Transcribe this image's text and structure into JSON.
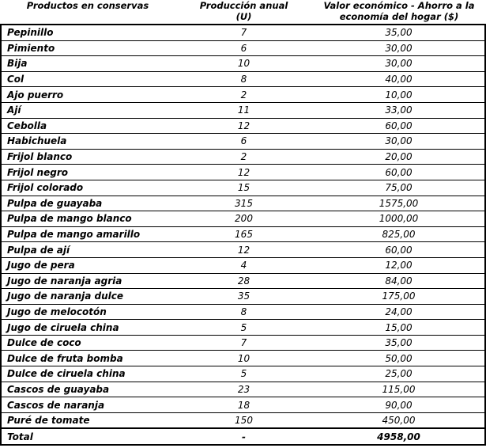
{
  "table": {
    "headers": {
      "products": "Productos en conservas",
      "production": "Producción anual\n(U)",
      "value": "Valor económico - Ahorro a la\neconomía del hogar ($)"
    },
    "rows": [
      {
        "product": "Pepinillo",
        "production": "7",
        "value": "35,00"
      },
      {
        "product": "Pimiento",
        "production": "6",
        "value": "30,00"
      },
      {
        "product": "Bija",
        "production": "10",
        "value": "30,00"
      },
      {
        "product": "Col",
        "production": "8",
        "value": "40,00"
      },
      {
        "product": "Ajo puerro",
        "production": "2",
        "value": "10,00"
      },
      {
        "product": "Ají",
        "production": "11",
        "value": "33,00"
      },
      {
        "product": "Cebolla",
        "production": "12",
        "value": "60,00"
      },
      {
        "product": "Habichuela",
        "production": "6",
        "value": "30,00"
      },
      {
        "product": "Frijol blanco",
        "production": "2",
        "value": "20,00"
      },
      {
        "product": "Frijol negro",
        "production": "12",
        "value": "60,00"
      },
      {
        "product": "Frijol colorado",
        "production": "15",
        "value": "75,00"
      },
      {
        "product": "Pulpa de guayaba",
        "production": "315",
        "value": "1575,00"
      },
      {
        "product": "Pulpa de mango blanco",
        "production": "200",
        "value": "1000,00"
      },
      {
        "product": "Pulpa de mango amarillo",
        "production": "165",
        "value": "825,00"
      },
      {
        "product": "Pulpa de ají",
        "production": "12",
        "value": "60,00"
      },
      {
        "product": "Jugo de pera",
        "production": "4",
        "value": "12,00"
      },
      {
        "product": "Jugo de naranja agria",
        "production": "28",
        "value": "84,00"
      },
      {
        "product": "Jugo de naranja dulce",
        "production": "35",
        "value": "175,00"
      },
      {
        "product": "Jugo de melocotón",
        "production": "8",
        "value": "24,00"
      },
      {
        "product": "Jugo de ciruela china",
        "production": "5",
        "value": "15,00"
      },
      {
        "product": "Dulce de coco",
        "production": "7",
        "value": "35,00"
      },
      {
        "product": "Dulce de fruta bomba",
        "production": "10",
        "value": "50,00"
      },
      {
        "product": "Dulce de ciruela china",
        "production": "5",
        "value": "25,00"
      },
      {
        "product": "Cascos de guayaba",
        "production": "23",
        "value": "115,00"
      },
      {
        "product": "Cascos de naranja",
        "production": "18",
        "value": "90,00"
      },
      {
        "product": "Puré de tomate",
        "production": "150",
        "value": "450,00"
      }
    ],
    "total_row": {
      "product": "Total",
      "production": "-",
      "value": "4958,00"
    },
    "colors": {
      "text": "#000000",
      "background": "#ffffff",
      "border": "#000000"
    }
  }
}
